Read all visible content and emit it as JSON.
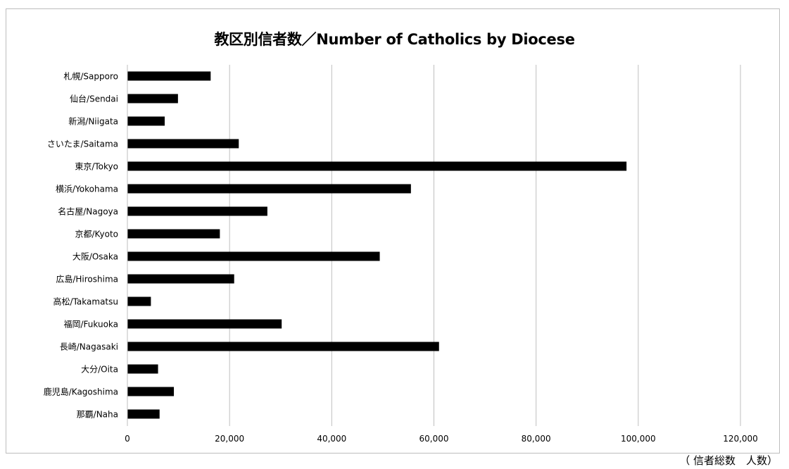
{
  "chart_data": {
    "type": "bar",
    "orientation": "horizontal",
    "title": "教区別信者数／Number of Catholics by Diocese",
    "unit_note": "（ 信者総数　人数）",
    "categories": [
      "札幌/Sapporo",
      "仙台/Sendai",
      "新潟/Niigata",
      "さいたま/Saitama",
      "東京/Tokyo",
      "横浜/Yokohama",
      "名古屋/Nagoya",
      "京都/Kyoto",
      "大阪/Osaka",
      "広島/Hiroshima",
      "高松/Takamatsu",
      "福岡/Fukuoka",
      "長崎/Nagasaki",
      "大分/Oita",
      "鹿児島/Kagoshima",
      "那覇/Naha"
    ],
    "values": [
      16300,
      9900,
      7300,
      21800,
      97700,
      55500,
      27400,
      18100,
      49400,
      20900,
      4600,
      30200,
      61000,
      6000,
      9100,
      6300
    ],
    "xlim": [
      0,
      120000
    ],
    "xticks": [
      0,
      20000,
      40000,
      60000,
      80000,
      100000,
      120000
    ],
    "xtick_labels": [
      "0",
      "20,000",
      "40,000",
      "60,000",
      "80,000",
      "100,000",
      "120,000"
    ],
    "grid": "vertical",
    "legend": "none",
    "bar_color": "#000000",
    "grid_color": "#bfbfbf"
  }
}
